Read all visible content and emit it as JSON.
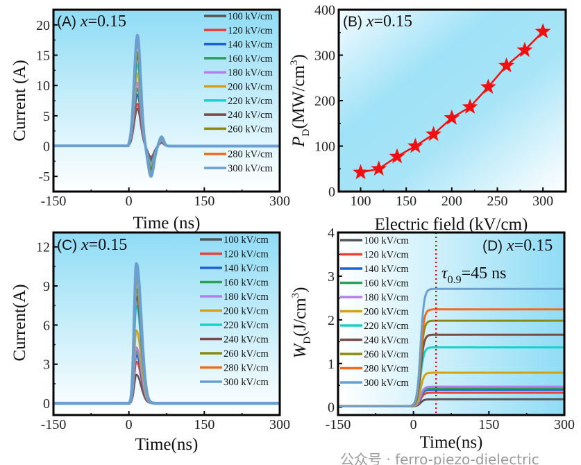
{
  "watermark": "公众号 · ferro-piezo-dielectric",
  "series_labels": [
    "100 kV/cm",
    "120 kV/cm",
    "140 kV/cm",
    "160 kV/cm",
    "180 kV/cm",
    "200 kV/cm",
    "220 kV/cm",
    "240 kV/cm",
    "260 kV/cm",
    "280 kV/cm",
    "300 kV/cm"
  ],
  "series_colors": [
    "#555555",
    "#e8403a",
    "#1f5fd6",
    "#2e9e5b",
    "#b67ee8",
    "#d4a017",
    "#1ccfcf",
    "#7a4a45",
    "#8a8a10",
    "#f26a1b",
    "#6a9fd0"
  ],
  "chart_data": [
    {
      "id": "A",
      "type": "line",
      "panel_label": "(A) ",
      "x_symbol": "x",
      "x_value": "=0.15",
      "xlabel": "Time (ns)",
      "ylabel": "Current (A)",
      "xlim": [
        -150,
        300
      ],
      "ylim": [
        -7.5,
        22.5
      ],
      "xticks": [
        -150,
        0,
        150,
        300
      ],
      "yticks": [
        -5,
        0,
        5,
        10,
        15,
        20
      ],
      "peak_current": [
        6.2,
        7.0,
        8.5,
        9.5,
        10.5,
        12.0,
        13.5,
        15.0,
        15.5,
        17.0,
        18.3
      ],
      "min_current": [
        -1.8,
        -2.0,
        -2.3,
        -2.6,
        -2.9,
        -3.2,
        -3.5,
        -3.9,
        -4.2,
        -4.5,
        -5.0
      ]
    },
    {
      "id": "B",
      "type": "line",
      "panel_label": "(B) ",
      "x_symbol": "x",
      "x_value": "=0.15",
      "xlabel": "Electric field (kV/cm)",
      "ylabel_main": "P",
      "ylabel_sub": "D",
      "ylabel_unit": "(MW/cm",
      "ylabel_sup": "3",
      "ylabel_end": ")",
      "xlim": [
        76,
        325
      ],
      "ylim": [
        0,
        400
      ],
      "xticks": [
        100,
        150,
        200,
        250,
        300
      ],
      "yticks": [
        0,
        100,
        200,
        300,
        400
      ],
      "marker": "star",
      "color": "#f01010",
      "x": [
        100,
        120,
        140,
        160,
        180,
        200,
        220,
        240,
        260,
        280,
        300
      ],
      "y": [
        42,
        50,
        77,
        100,
        126,
        162,
        186,
        230,
        277,
        311,
        352
      ]
    },
    {
      "id": "C",
      "type": "line",
      "panel_label": "(C) ",
      "x_symbol": "x",
      "x_value": "=0.15",
      "xlabel": "Time(ns)",
      "ylabel": "Current(A)",
      "xlim": [
        -150,
        300
      ],
      "ylim": [
        -0.9,
        13.1
      ],
      "xticks": [
        -150,
        0,
        150,
        300
      ],
      "yticks": [
        0,
        3,
        6,
        9,
        12
      ],
      "peak_current": [
        2.2,
        3.2,
        3.7,
        4.0,
        4.3,
        5.6,
        7.5,
        8.2,
        8.8,
        9.6,
        10.7
      ]
    },
    {
      "id": "D",
      "type": "line",
      "panel_label": "(D) ",
      "x_symbol": "x",
      "x_value": "=0.15",
      "xlabel": "Time(ns)",
      "ylabel_main": "W",
      "ylabel_sub": "D",
      "ylabel_unit": "(J/cm",
      "ylabel_sup": "3",
      "ylabel_end": ")",
      "xlim": [
        -150,
        300
      ],
      "ylim": [
        -0.18,
        4
      ],
      "xticks": [
        -150,
        0,
        150,
        300
      ],
      "yticks": [
        0,
        1,
        2,
        3,
        4
      ],
      "final_energy_density": [
        0.16,
        0.31,
        0.38,
        0.41,
        0.45,
        0.77,
        1.35,
        1.64,
        1.96,
        2.22,
        2.69
      ],
      "tau_line_x": 45,
      "tau_symbol": "τ",
      "tau_sub": "0.9",
      "tau_text": "=45 ns"
    }
  ]
}
